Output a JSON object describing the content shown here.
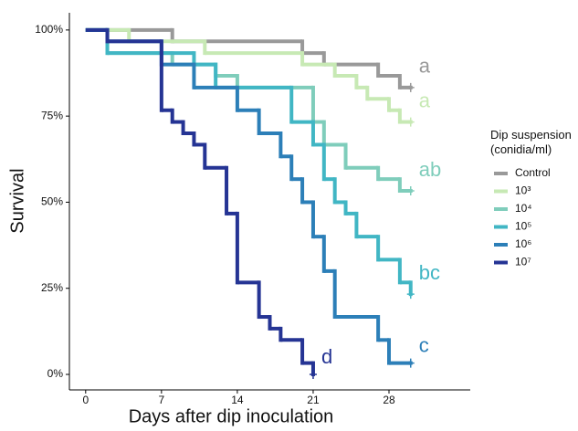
{
  "chart_data": {
    "type": "step",
    "x_label": "Days after dip inoculation",
    "y_label": "Survival",
    "xlim": [
      -1.5,
      35.5
    ],
    "ylim": [
      -4.5,
      105
    ],
    "xticks": [
      0,
      7,
      14,
      21,
      28
    ],
    "yticks": [
      {
        "value": 0,
        "label": "0%"
      },
      {
        "value": 25,
        "label": "25%"
      },
      {
        "value": 50,
        "label": "50%"
      },
      {
        "value": 75,
        "label": "75%"
      },
      {
        "value": 100,
        "label": "100%"
      }
    ],
    "legend_title": "Dip suspension (conidia/ml)",
    "legend": "right",
    "series": [
      {
        "name": "Control",
        "color": "#999999",
        "label": "a",
        "x": [
          0,
          8,
          20,
          22,
          27,
          29,
          30
        ],
        "values": [
          100,
          96.7,
          93.3,
          90,
          86.7,
          83.3,
          83.3
        ]
      },
      {
        "name": "10³",
        "color": "#c7e9b4",
        "label": "a",
        "x": [
          0,
          4,
          11,
          20,
          23,
          25,
          26,
          28,
          29,
          30
        ],
        "values": [
          100,
          96.7,
          93.3,
          90,
          86.7,
          83.3,
          80,
          76.7,
          73.3,
          73.3
        ]
      },
      {
        "name": "10⁴",
        "color": "#7fcdbb",
        "label": "ab",
        "x": [
          0,
          2,
          8,
          12,
          14,
          21,
          22,
          24,
          27,
          29,
          30
        ],
        "values": [
          100,
          93.3,
          90,
          86.7,
          83.3,
          73.3,
          66.7,
          60,
          56.7,
          53.3,
          53.3
        ]
      },
      {
        "name": "10⁵",
        "color": "#41b6c4",
        "label": "bc",
        "x": [
          0,
          2,
          10,
          12,
          19,
          21,
          22,
          23,
          24,
          25,
          27,
          29,
          30
        ],
        "values": [
          100,
          93.3,
          90,
          83.3,
          73.3,
          66.7,
          56.7,
          50,
          46.7,
          40,
          33.3,
          26.7,
          23.3
        ]
      },
      {
        "name": "10⁶",
        "color": "#2c7fb8",
        "label": "c",
        "x": [
          0,
          2,
          7,
          10,
          14,
          16,
          18,
          19,
          20,
          21,
          22,
          23,
          27,
          28,
          30
        ],
        "values": [
          100,
          96.7,
          90,
          83.3,
          76.7,
          70,
          63.3,
          56.7,
          50,
          40,
          30,
          16.7,
          10,
          3.3,
          3.3
        ]
      },
      {
        "name": "10⁷",
        "color": "#253494",
        "label": "d",
        "x": [
          0,
          2,
          7,
          8,
          9,
          10,
          11,
          13,
          14,
          16,
          17,
          18,
          20,
          21
        ],
        "values": [
          100,
          96.7,
          76.7,
          73.3,
          70,
          66.7,
          60,
          46.7,
          26.7,
          16.7,
          13.3,
          10,
          3.3,
          0
        ]
      }
    ]
  }
}
